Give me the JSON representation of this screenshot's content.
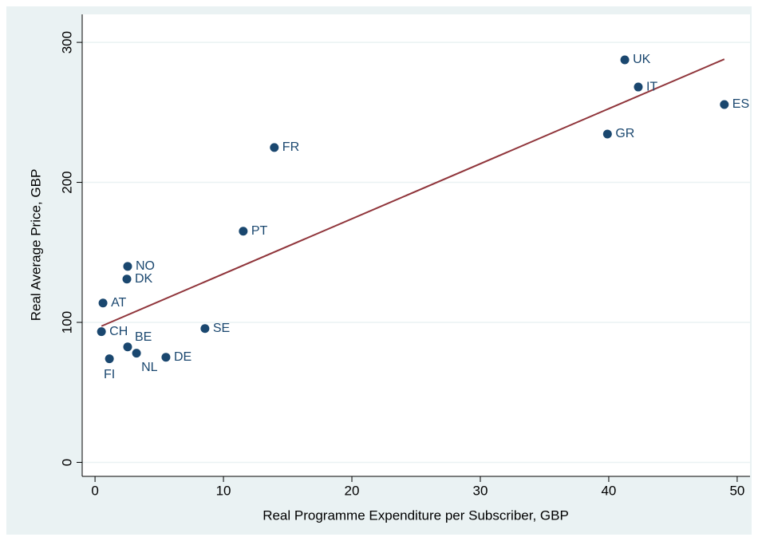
{
  "chart_data": {
    "type": "scatter",
    "xlabel": "Real Programme Expenditure per Subscriber, GBP",
    "ylabel": "Real Average Price, GBP",
    "point_labels": [
      "UK",
      "IT",
      "ES",
      "GR",
      "FR",
      "PT",
      "NO",
      "DK",
      "AT",
      "SE",
      "CH",
      "BE",
      "NL",
      "DE",
      "FI"
    ],
    "x": [
      41.25,
      42.3,
      49.0,
      39.9,
      13.96,
      11.54,
      2.54,
      2.48,
      0.62,
      8.56,
      0.5,
      2.54,
      3.23,
      5.52,
      1.12
    ],
    "values": [
      287.5,
      268.1,
      255.6,
      234.5,
      224.9,
      165.1,
      140.0,
      130.9,
      113.8,
      95.6,
      93.4,
      82.5,
      78.0,
      75.1,
      74.0
    ],
    "color": "#1a476f",
    "fit": {
      "x": [
        0.5,
        49.0
      ],
      "values": [
        97.3,
        288.0
      ],
      "color": "#90353b"
    },
    "xlim": [
      -1,
      51
    ],
    "ylim": [
      -10,
      320
    ],
    "xticks": [
      0,
      10,
      20,
      30,
      40,
      50
    ],
    "yticks": [
      0,
      100,
      200,
      300
    ],
    "grid": true
  }
}
